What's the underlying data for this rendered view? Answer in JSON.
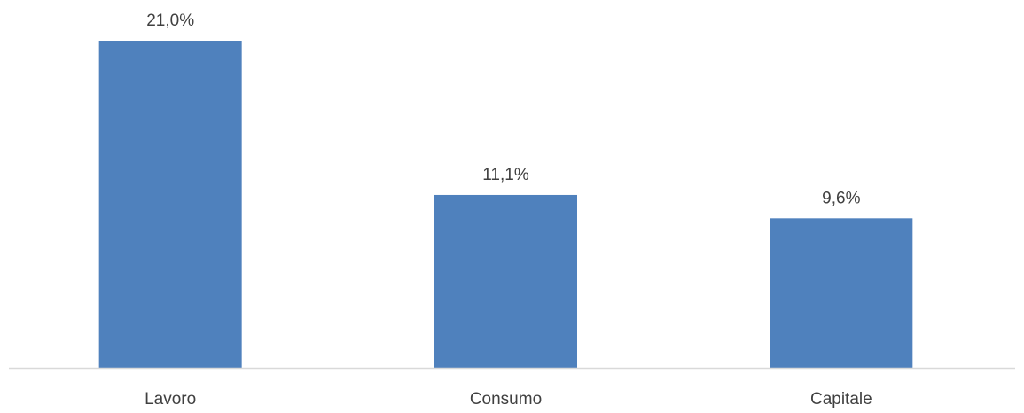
{
  "chart_data": {
    "type": "bar",
    "categories": [
      "Lavoro",
      "Consumo",
      "Capitale"
    ],
    "values": [
      21.0,
      11.1,
      9.6
    ],
    "data_labels": [
      "21,0%",
      "11,1%",
      "9,6%"
    ],
    "title": "",
    "xlabel": "",
    "ylabel": "",
    "ylim": [
      0,
      21.0
    ],
    "grid": false,
    "legend": "none",
    "bar_color": "#4F81BD",
    "axis_color": "#D9D9D9",
    "text_color": "#404040"
  }
}
